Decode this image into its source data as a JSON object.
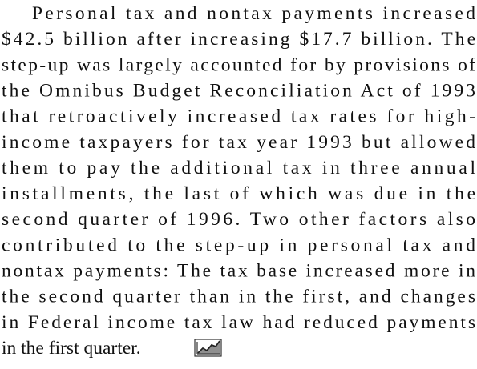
{
  "paragraph": {
    "lines": [
      "Personal tax and nontax payments increased",
      "$42.5 billion after increasing $17.7 billion.  The",
      "step-up was largely accounted for by provisions of",
      "the Omnibus Budget Reconciliation Act of 1993",
      "that retroactively increased tax rates for high-",
      "income taxpayers for tax year 1993 but allowed",
      "them to pay the additional tax in three annual",
      "installments, the last of which was due in the",
      "second quarter of 1996.  Two other factors also",
      "contributed to the step-up in personal tax and",
      "nontax payments: The tax base increased more in",
      "the second quarter than in the first, and changes",
      "in Federal income tax law had reduced payments",
      "in the first quarter."
    ]
  }
}
